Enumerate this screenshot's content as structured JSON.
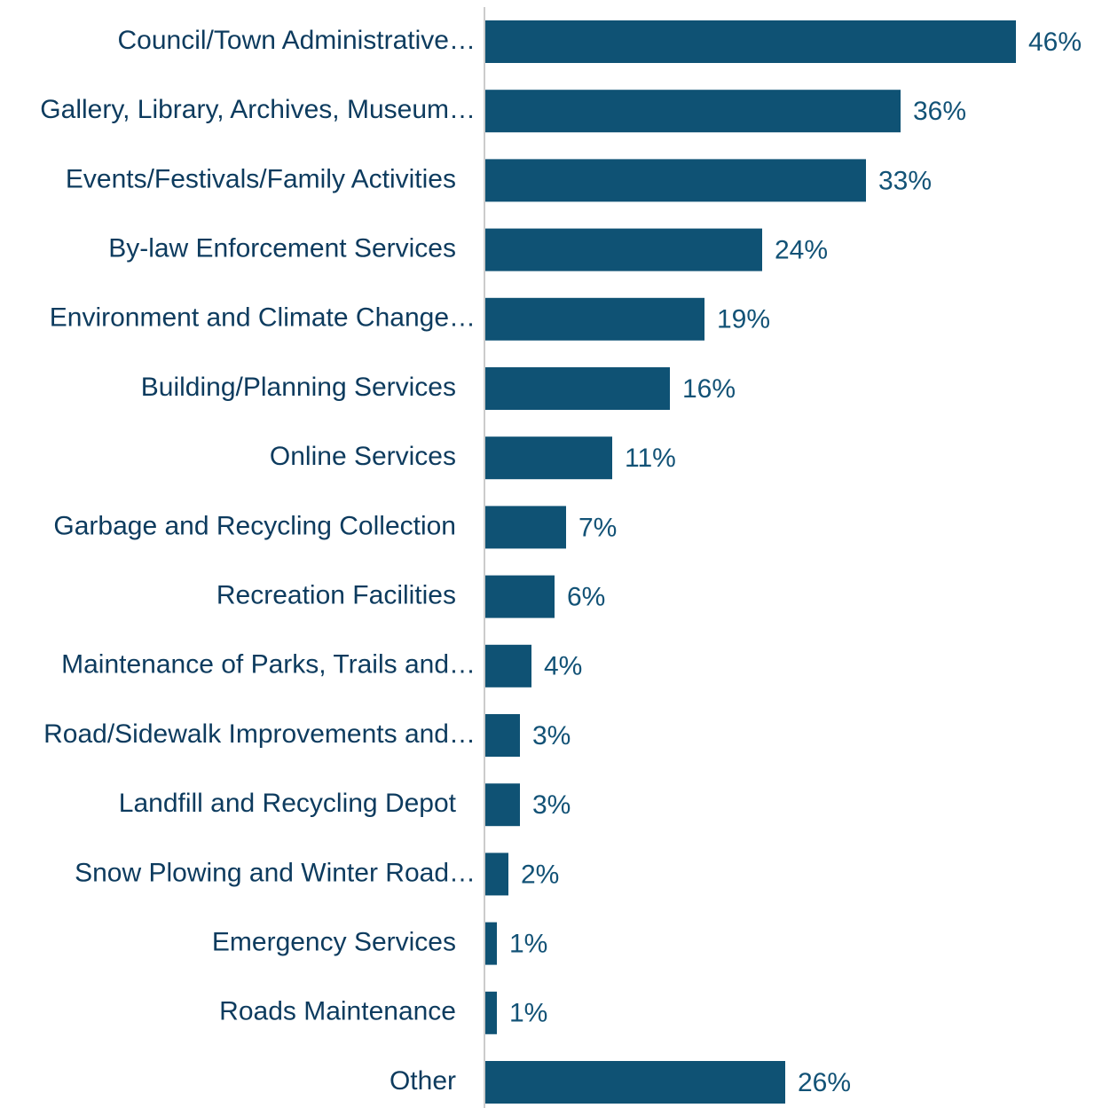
{
  "chart_data": {
    "type": "bar",
    "orientation": "horizontal",
    "color": "#0f5274",
    "categories": [
      "Council/Town Administrative…",
      "Gallery, Library, Archives, Museum…",
      "Events/Festivals/Family Activities",
      "By-law Enforcement Services",
      "Environment and Climate Change…",
      "Building/Planning Services",
      "Online Services",
      "Garbage and Recycling Collection",
      "Recreation Facilities",
      "Maintenance of Parks, Trails and…",
      "Road/Sidewalk Improvements and…",
      "Landfill and Recycling Depot",
      "Snow Plowing and Winter Road…",
      "Emergency Services",
      "Roads Maintenance",
      "Other"
    ],
    "values": [
      46,
      36,
      33,
      24,
      19,
      16,
      11,
      7,
      6,
      4,
      3,
      3,
      2,
      1,
      1,
      26
    ],
    "value_labels": [
      "46%",
      "36%",
      "33%",
      "24%",
      "19%",
      "16%",
      "11%",
      "7%",
      "6%",
      "4%",
      "3%",
      "3%",
      "2%",
      "1%",
      "1%",
      "26%"
    ]
  }
}
